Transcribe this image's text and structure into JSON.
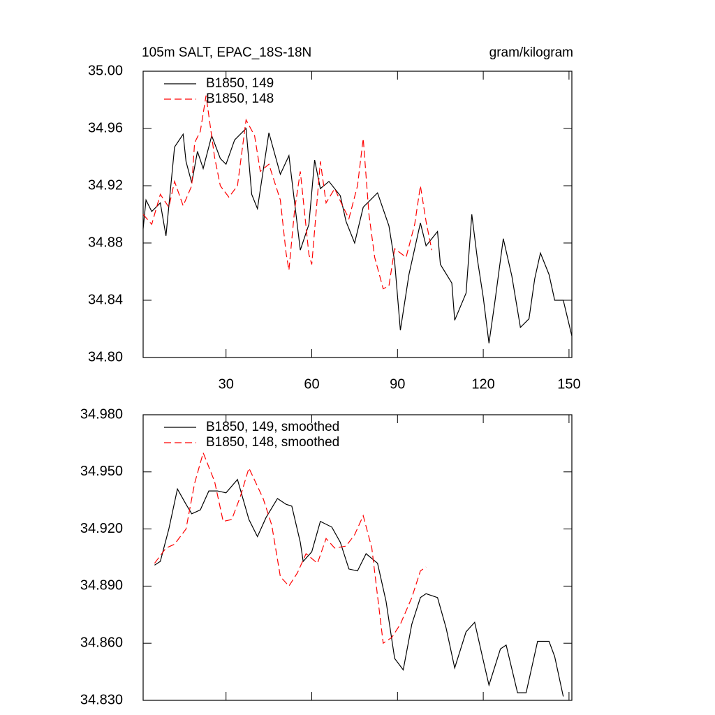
{
  "chart_data": [
    {
      "type": "line",
      "title": "105m SALT, EPAC_18S-18N",
      "units": "gram/kilogram",
      "xlim": [
        1,
        151
      ],
      "ylim": [
        34.8,
        35.0
      ],
      "xticks": [
        30,
        60,
        90,
        120,
        150
      ],
      "xticklabels": true,
      "yticks": [
        {
          "value": 34.8,
          "label": "34.80"
        },
        {
          "value": 34.84,
          "label": "34.84"
        },
        {
          "value": 34.88,
          "label": "34.88"
        },
        {
          "value": 34.92,
          "label": "34.92"
        },
        {
          "value": 34.96,
          "label": "34.96"
        },
        {
          "value": 35.0,
          "label": "35.00"
        }
      ],
      "legend": "upper left",
      "series": [
        {
          "name": "B1850, 149",
          "color": "#000000",
          "dash": "solid",
          "x": [
            1,
            2,
            4,
            7,
            9,
            12,
            15,
            16,
            18,
            20,
            22,
            25,
            28,
            30,
            33,
            37,
            39,
            41,
            45,
            49,
            52,
            56,
            59,
            61,
            63,
            66,
            70,
            72,
            75,
            78,
            83,
            87,
            89,
            91,
            94,
            98,
            100,
            104,
            105,
            109,
            110,
            114,
            116,
            118,
            120,
            122,
            124,
            127,
            130,
            133,
            136,
            138,
            140,
            143,
            145,
            148,
            151
          ],
          "values": [
            34.89,
            34.91,
            34.902,
            34.908,
            34.885,
            34.947,
            34.956,
            34.937,
            34.922,
            34.944,
            34.932,
            34.955,
            34.939,
            34.935,
            34.952,
            34.96,
            34.914,
            34.904,
            34.957,
            34.928,
            34.941,
            34.875,
            34.893,
            34.938,
            34.918,
            34.923,
            34.913,
            34.895,
            34.88,
            34.905,
            34.915,
            34.892,
            34.867,
            34.819,
            34.858,
            34.894,
            34.878,
            34.888,
            34.865,
            34.852,
            34.826,
            34.845,
            34.9,
            34.868,
            34.842,
            34.81,
            34.838,
            34.883,
            34.857,
            34.821,
            34.827,
            34.855,
            34.873,
            34.858,
            34.84,
            34.84,
            34.815
          ]
        },
        {
          "name": "B1850, 148",
          "color": "#ff0000",
          "dash": "dashed",
          "x": [
            1,
            4,
            7,
            10,
            12,
            15,
            18,
            19,
            21,
            23,
            26,
            28,
            31,
            34,
            37,
            40,
            42,
            45,
            49,
            51,
            52,
            54,
            56,
            59,
            60,
            63,
            65,
            68,
            71,
            73,
            76,
            78,
            80,
            82,
            85,
            87,
            89,
            93,
            96,
            98,
            100,
            102
          ],
          "values": [
            34.9,
            34.893,
            34.914,
            34.905,
            34.923,
            34.906,
            34.92,
            34.95,
            34.958,
            34.983,
            34.94,
            34.92,
            34.912,
            34.92,
            34.966,
            34.955,
            34.93,
            34.935,
            34.91,
            34.873,
            34.861,
            34.903,
            34.93,
            34.872,
            34.865,
            34.937,
            34.908,
            34.918,
            34.905,
            34.897,
            34.92,
            34.953,
            34.9,
            34.87,
            34.848,
            34.85,
            34.876,
            34.87,
            34.893,
            34.92,
            34.895,
            34.875
          ]
        }
      ]
    },
    {
      "type": "line",
      "xlim": [
        1,
        151
      ],
      "ylim": [
        34.83,
        34.98
      ],
      "xticks": [
        30,
        60,
        90,
        120,
        150
      ],
      "xticklabels": false,
      "yticks": [
        {
          "value": 34.83,
          "label": "34.830"
        },
        {
          "value": 34.86,
          "label": "34.860"
        },
        {
          "value": 34.89,
          "label": "34.890"
        },
        {
          "value": 34.92,
          "label": "34.920"
        },
        {
          "value": 34.95,
          "label": "34.950"
        },
        {
          "value": 34.98,
          "label": "34.980"
        }
      ],
      "legend": "upper left",
      "series": [
        {
          "name": "B1850, 149, smoothed",
          "color": "#000000",
          "dash": "solid",
          "x": [
            5,
            7,
            10,
            13,
            16,
            18,
            21,
            24,
            27,
            30,
            34,
            38,
            41,
            44,
            48,
            51,
            53,
            56,
            57,
            60,
            63,
            67,
            70,
            73,
            76,
            79,
            83,
            86,
            89,
            92,
            95,
            98,
            100,
            104,
            107,
            110,
            114,
            117,
            120,
            122,
            126,
            128,
            132,
            135,
            139,
            143,
            145,
            148
          ],
          "values": [
            34.901,
            34.903,
            34.92,
            34.941,
            34.933,
            34.928,
            34.93,
            34.94,
            34.94,
            34.939,
            34.946,
            34.925,
            34.916,
            34.926,
            34.936,
            34.933,
            34.932,
            34.913,
            34.903,
            34.908,
            34.924,
            34.921,
            34.913,
            34.899,
            34.898,
            34.907,
            34.902,
            34.882,
            34.852,
            34.846,
            34.87,
            34.884,
            34.886,
            34.884,
            34.868,
            34.847,
            34.866,
            34.871,
            34.851,
            34.838,
            34.857,
            34.859,
            34.834,
            34.834,
            34.861,
            34.861,
            34.853,
            34.832
          ]
        },
        {
          "name": "B1850, 148, smoothed",
          "color": "#ff0000",
          "dash": "dashed",
          "x": [
            5,
            9,
            12,
            16,
            19,
            22,
            26,
            29,
            32,
            35,
            38,
            43,
            46,
            49,
            52,
            55,
            58,
            62,
            65,
            68,
            72,
            75,
            78,
            81,
            85,
            88,
            91,
            95,
            98,
            100
          ],
          "values": [
            34.902,
            34.91,
            34.912,
            34.92,
            34.944,
            34.96,
            34.945,
            34.924,
            34.925,
            34.937,
            34.952,
            34.936,
            34.922,
            34.895,
            34.89,
            34.897,
            34.907,
            34.902,
            34.915,
            34.91,
            34.911,
            34.917,
            34.927,
            34.91,
            34.86,
            34.863,
            34.87,
            34.884,
            34.898,
            34.9
          ]
        }
      ]
    }
  ]
}
